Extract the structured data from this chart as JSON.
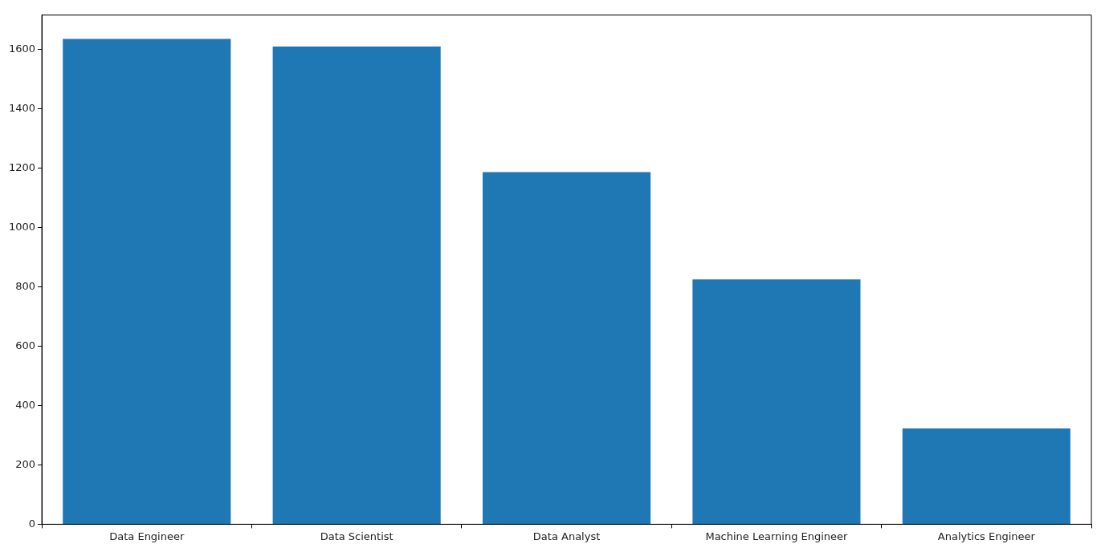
{
  "chart_data": {
    "type": "bar",
    "categories": [
      "Data Engineer",
      "Data Scientist",
      "Data Analyst",
      "Machine Learning Engineer",
      "Analytics Engineer"
    ],
    "values": [
      1635,
      1609,
      1186,
      825,
      323
    ],
    "color": "#1f77b4",
    "ylim": [
      0,
      1715
    ],
    "yticks": [
      0,
      200,
      400,
      600,
      800,
      1000,
      1200,
      1400,
      1600
    ],
    "grid": false,
    "legend": false
  }
}
